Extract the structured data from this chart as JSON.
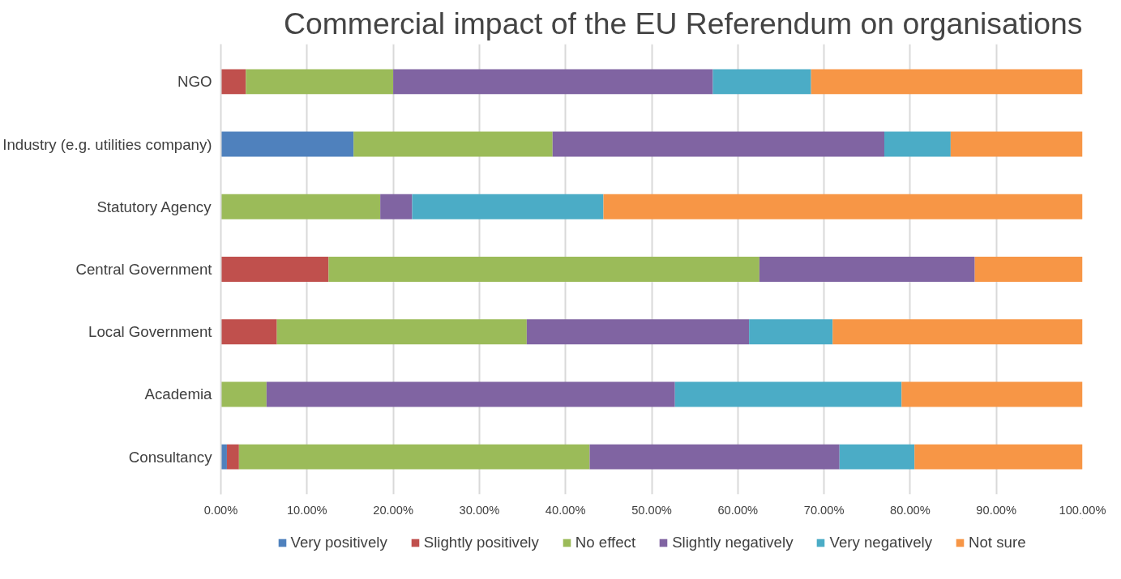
{
  "chart_data": {
    "type": "bar",
    "orientation": "horizontal",
    "stacked": true,
    "title": "Commercial impact of the EU Referendum on organisations",
    "categories": [
      "NGO",
      "Industry (e.g. utilities company)",
      "Statutory Agency",
      "Central Government",
      "Local Government",
      "Academia",
      "Consultancy"
    ],
    "series": [
      {
        "name": "Very positively",
        "color": "#4f81bd",
        "values": [
          0,
          15.4,
          0,
          0,
          0,
          0,
          0.7
        ]
      },
      {
        "name": "Slightly positively",
        "color": "#c0504d",
        "values": [
          2.9,
          0,
          0,
          12.5,
          6.5,
          0,
          1.4
        ]
      },
      {
        "name": "No effect",
        "color": "#9bbb59",
        "values": [
          17.1,
          23.1,
          18.5,
          50,
          29.0,
          5.3,
          40.7
        ]
      },
      {
        "name": "Slightly negatively",
        "color": "#8064a2",
        "values": [
          37.1,
          38.5,
          3.7,
          25,
          25.8,
          47.4,
          29.0
        ]
      },
      {
        "name": "Very negatively",
        "color": "#4bacc6",
        "values": [
          11.4,
          7.7,
          22.2,
          0,
          9.7,
          26.3,
          8.7
        ]
      },
      {
        "name": "Not sure",
        "color": "#f79646",
        "values": [
          31.5,
          15.4,
          55.6,
          12.5,
          29.0,
          21.0,
          19.5
        ]
      }
    ],
    "xlim": [
      0,
      100
    ],
    "xticks": [
      {
        "value": 0,
        "label": "0.00%"
      },
      {
        "value": 10,
        "label": "10.00%"
      },
      {
        "value": 20,
        "label": "20.00%"
      },
      {
        "value": 30,
        "label": "30.00%"
      },
      {
        "value": 40,
        "label": "40.00%"
      },
      {
        "value": 50,
        "label": "50.00%"
      },
      {
        "value": 60,
        "label": "60.00%"
      },
      {
        "value": 70,
        "label": "70.00%"
      },
      {
        "value": 80,
        "label": "80.00%"
      },
      {
        "value": 90,
        "label": "90.00%"
      },
      {
        "value": 100,
        "label": "100.00%"
      }
    ],
    "grid": "x",
    "legend": "bottom"
  }
}
